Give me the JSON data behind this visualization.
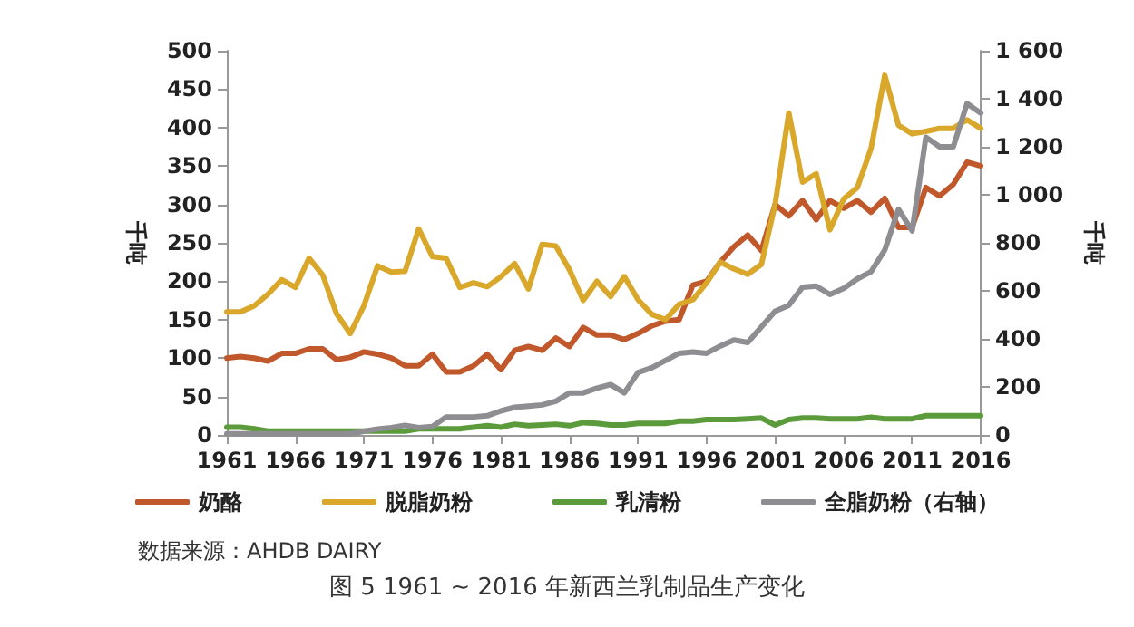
{
  "chart_data": {
    "type": "line",
    "title": "图 5 1961 ~ 2016 年新西兰乳制品生产变化",
    "ylabel": "千吨",
    "y2label": "千吨",
    "annotations": [
      "数据来源：AHDB DAIRY"
    ],
    "x": [
      1961,
      1962,
      1963,
      1964,
      1965,
      1966,
      1967,
      1968,
      1969,
      1970,
      1971,
      1972,
      1973,
      1974,
      1975,
      1976,
      1977,
      1978,
      1979,
      1980,
      1981,
      1982,
      1983,
      1984,
      1985,
      1986,
      1987,
      1988,
      1989,
      1990,
      1991,
      1992,
      1993,
      1994,
      1995,
      1996,
      1997,
      1998,
      1999,
      2000,
      2001,
      2002,
      2003,
      2004,
      2005,
      2006,
      2007,
      2008,
      2009,
      2010,
      2011,
      2012,
      2013,
      2014,
      2015,
      2016
    ],
    "xlim": [
      1961,
      2016
    ],
    "xticks": [
      1961,
      1966,
      1971,
      1976,
      1981,
      1986,
      1991,
      1996,
      2001,
      2006,
      2011,
      2016
    ],
    "ylim": [
      0,
      500
    ],
    "yticks": [
      0,
      50,
      100,
      150,
      200,
      250,
      300,
      350,
      400,
      450,
      500
    ],
    "y2lim": [
      0,
      1600
    ],
    "y2ticks": [
      0,
      200,
      400,
      600,
      800,
      {
        "value": 1000,
        "label": "1 000"
      },
      {
        "value": 1200,
        "label": "1 200"
      },
      {
        "value": 1400,
        "label": "1 400"
      },
      {
        "value": 1600,
        "label": "1 600"
      }
    ],
    "grid": false,
    "legend": "bottom",
    "marker": "none",
    "line_style": "solid",
    "series": [
      {
        "name": "奶酪",
        "color": "#c0582b",
        "values": [
          100,
          102,
          100,
          96,
          106,
          106,
          112,
          112,
          98,
          101,
          108,
          105,
          100,
          90,
          90,
          105,
          82,
          82,
          90,
          105,
          85,
          110,
          115,
          110,
          126,
          115,
          140,
          130,
          130,
          124,
          132,
          142,
          148,
          150,
          195,
          200,
          225,
          245,
          260,
          240,
          300,
          285,
          305,
          280,
          305,
          295,
          305,
          290,
          308,
          270,
          270,
          322,
          311,
          326,
          355,
          350
        ]
      },
      {
        "name": "脱脂奶粉",
        "color": "#d9a72a",
        "values": [
          160,
          160,
          168,
          183,
          202,
          192,
          230,
          208,
          158,
          132,
          168,
          220,
          212,
          213,
          268,
          232,
          230,
          192,
          198,
          193,
          206,
          223,
          190,
          248,
          246,
          215,
          175,
          200,
          180,
          206,
          176,
          157,
          150,
          170,
          176,
          198,
          225,
          216,
          209,
          222,
          300,
          419,
          329,
          340,
          267,
          307,
          322,
          373,
          468,
          403,
          392,
          395,
          399,
          399,
          410,
          399
        ]
      },
      {
        "name": "乳清粉",
        "color": "#5c9b3b",
        "values": [
          10,
          10,
          8,
          5,
          5,
          5,
          5,
          5,
          5,
          5,
          5,
          5,
          5,
          5,
          8,
          8,
          8,
          8,
          10,
          12,
          10,
          14,
          12,
          13,
          14,
          12,
          16,
          15,
          13,
          13,
          15,
          15,
          15,
          18,
          18,
          20,
          20,
          20,
          21,
          22,
          13,
          20,
          22,
          22,
          21,
          21,
          21,
          23,
          21,
          21,
          21,
          25,
          25,
          25,
          25,
          25
        ]
      },
      {
        "name": "全脂奶粉（右轴）",
        "color": "#8e8e92",
        "axis": "y2",
        "values": [
          5,
          5,
          5,
          5,
          5,
          5,
          5,
          5,
          5,
          5,
          15,
          25,
          30,
          40,
          30,
          35,
          75,
          75,
          75,
          80,
          100,
          115,
          120,
          125,
          140,
          175,
          175,
          195,
          210,
          175,
          260,
          280,
          310,
          340,
          345,
          340,
          370,
          395,
          385,
          450,
          515,
          540,
          615,
          620,
          585,
          610,
          650,
          680,
          770,
          940,
          850,
          1240,
          1200,
          1200,
          1380,
          1340
        ]
      }
    ]
  }
}
